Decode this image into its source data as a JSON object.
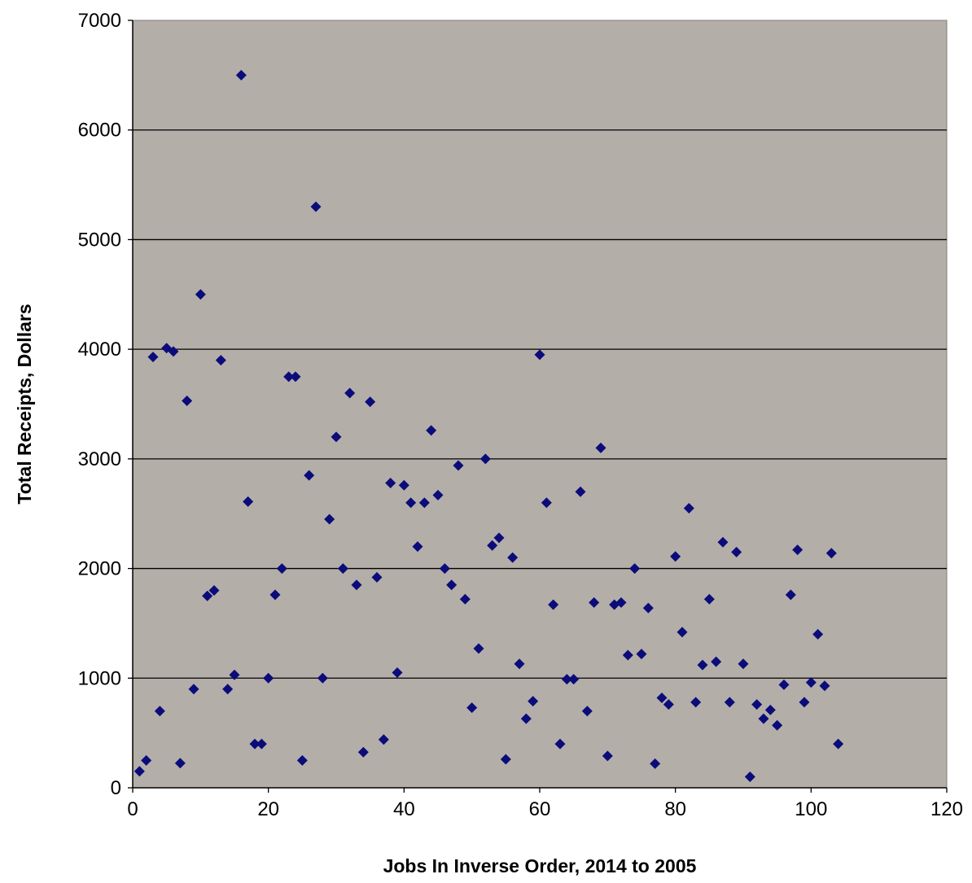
{
  "chart_data": {
    "type": "scatter",
    "title": "",
    "xlabel": "Jobs In Inverse Order, 2014 to 2005",
    "ylabel": "Total Receipts, Dollars",
    "xlim": [
      0,
      120
    ],
    "ylim": [
      0,
      7000
    ],
    "xticks": [
      0,
      20,
      40,
      60,
      80,
      100,
      120
    ],
    "yticks": [
      0,
      1000,
      2000,
      3000,
      4000,
      5000,
      6000,
      7000
    ],
    "grid": "horizontal",
    "plot_background": "#b4aea9",
    "marker_color": "#0b0c7a",
    "marker": "diamond",
    "series": [
      {
        "points": [
          [
            1,
            150
          ],
          [
            2,
            250
          ],
          [
            3,
            3930
          ],
          [
            4,
            700
          ],
          [
            5,
            4010
          ],
          [
            6,
            3980
          ],
          [
            7,
            225
          ],
          [
            8,
            3530
          ],
          [
            9,
            900
          ],
          [
            10,
            4500
          ],
          [
            11,
            1750
          ],
          [
            12,
            1800
          ],
          [
            13,
            3900
          ],
          [
            14,
            900
          ],
          [
            15,
            1030
          ],
          [
            16,
            6500
          ],
          [
            17,
            2610
          ],
          [
            18,
            400
          ],
          [
            19,
            400
          ],
          [
            20,
            1000
          ],
          [
            21,
            1760
          ],
          [
            22,
            2000
          ],
          [
            23,
            3750
          ],
          [
            24,
            3750
          ],
          [
            25,
            250
          ],
          [
            26,
            2850
          ],
          [
            27,
            5300
          ],
          [
            28,
            1000
          ],
          [
            29,
            2450
          ],
          [
            30,
            3200
          ],
          [
            31,
            2000
          ],
          [
            32,
            3600
          ],
          [
            33,
            1850
          ],
          [
            34,
            325
          ],
          [
            35,
            3520
          ],
          [
            36,
            1920
          ],
          [
            37,
            440
          ],
          [
            38,
            2780
          ],
          [
            39,
            1050
          ],
          [
            40,
            2760
          ],
          [
            41,
            2600
          ],
          [
            42,
            2200
          ],
          [
            43,
            2600
          ],
          [
            44,
            3260
          ],
          [
            45,
            2670
          ],
          [
            46,
            2000
          ],
          [
            47,
            1850
          ],
          [
            48,
            2940
          ],
          [
            49,
            1720
          ],
          [
            50,
            730
          ],
          [
            51,
            1270
          ],
          [
            52,
            3000
          ],
          [
            53,
            2210
          ],
          [
            54,
            2280
          ],
          [
            55,
            260
          ],
          [
            56,
            2100
          ],
          [
            57,
            1130
          ],
          [
            58,
            630
          ],
          [
            59,
            790
          ],
          [
            60,
            3950
          ],
          [
            61,
            2600
          ],
          [
            62,
            1670
          ],
          [
            63,
            400
          ],
          [
            64,
            990
          ],
          [
            65,
            990
          ],
          [
            66,
            2700
          ],
          [
            67,
            700
          ],
          [
            68,
            1690
          ],
          [
            69,
            3100
          ],
          [
            70,
            290
          ],
          [
            71,
            1670
          ],
          [
            72,
            1690
          ],
          [
            73,
            1210
          ],
          [
            74,
            2000
          ],
          [
            75,
            1220
          ],
          [
            76,
            1640
          ],
          [
            77,
            220
          ],
          [
            78,
            820
          ],
          [
            79,
            760
          ],
          [
            80,
            2110
          ],
          [
            81,
            1420
          ],
          [
            82,
            2550
          ],
          [
            83,
            780
          ],
          [
            84,
            1120
          ],
          [
            85,
            1720
          ],
          [
            86,
            1150
          ],
          [
            87,
            2240
          ],
          [
            88,
            780
          ],
          [
            89,
            2150
          ],
          [
            90,
            1130
          ],
          [
            91,
            100
          ],
          [
            92,
            760
          ],
          [
            93,
            630
          ],
          [
            94,
            710
          ],
          [
            95,
            570
          ],
          [
            96,
            940
          ],
          [
            97,
            1760
          ],
          [
            98,
            2170
          ],
          [
            99,
            780
          ],
          [
            100,
            960
          ],
          [
            101,
            1400
          ],
          [
            102,
            930
          ],
          [
            103,
            2140
          ],
          [
            104,
            400
          ]
        ]
      }
    ]
  }
}
